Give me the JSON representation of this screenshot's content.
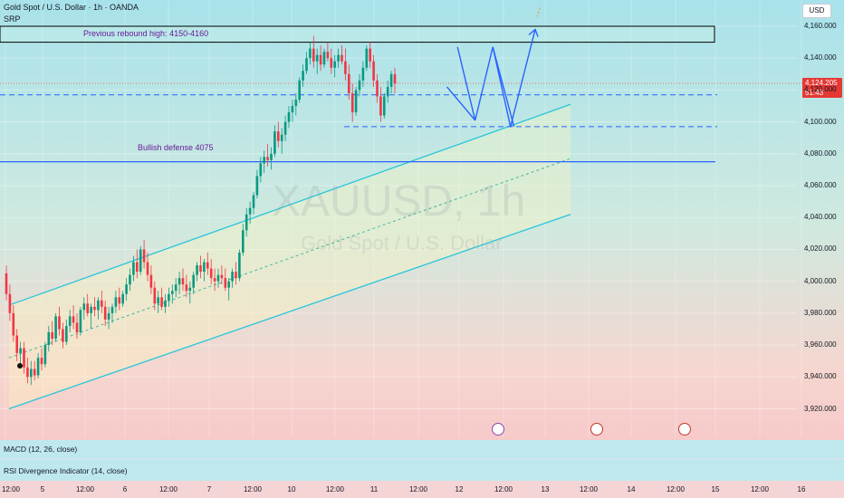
{
  "header": {
    "title": "Gold Spot / U.S. Dollar · 1h · OANDA",
    "indicator": "SRP"
  },
  "currency_button": "USD",
  "price_badge": {
    "price": "4,124.205",
    "countdown": "51:43",
    "color": "#e53935"
  },
  "watermark": {
    "symbol": "XAUUSD, 1h",
    "name": "Gold Spot / U.S. Dollar"
  },
  "annotations": {
    "rebound": "Previous rebound high: 4150-4160",
    "defense": "Bullish defense 4075"
  },
  "panels": {
    "macd": "MACD (12, 26, close)",
    "rsi": "RSI Divergence Indicator (14, close)"
  },
  "colors": {
    "up": "#089981",
    "down": "#f23645",
    "channel": "#26c6da",
    "level_line": "#2962ff",
    "annotation_text": "#6a1b9a",
    "forecast_arrow": "#2962ff"
  },
  "chart_data": {
    "type": "candlestick",
    "symbol": "XAUUSD",
    "timeframe": "1h",
    "ylim": [
      3910,
      4170
    ],
    "y_ticks": [
      "4,160.000",
      "4,140.000",
      "4,120.000",
      "4,100.000",
      "4,080.000",
      "4,060.000",
      "4,040.000",
      "4,020.000",
      "4,000.000",
      "3,980.000",
      "3,960.000",
      "3,940.000",
      "3,920.000"
    ],
    "x_ticks": [
      "12:00",
      "5",
      "12:00",
      "6",
      "12:00",
      "7",
      "12:00",
      "10",
      "12:00",
      "11",
      "12:00",
      "12",
      "12:00",
      "13",
      "12:00",
      "14",
      "12:00",
      "15",
      "12:00",
      "16",
      "12:00"
    ],
    "horizontal_levels": [
      {
        "value": 4075,
        "style": "solid"
      },
      {
        "value": 4117,
        "style": "dashed"
      },
      {
        "value": 4097,
        "style": "dashed"
      },
      {
        "value": 4124.205,
        "style": "dotted-red"
      }
    ],
    "zone": {
      "from": 4150,
      "to": 4160
    },
    "channel": {
      "upper": [
        [
          1,
          3985
        ],
        [
          160,
          4111
        ]
      ],
      "lower": [
        [
          1,
          3920
        ],
        [
          160,
          4042
        ]
      ],
      "mid": [
        [
          1,
          3952
        ],
        [
          160,
          4077
        ]
      ]
    },
    "forecast_path": [
      [
        128,
        4147
      ],
      [
        133,
        4101
      ],
      [
        138,
        4147
      ],
      [
        143,
        4097
      ],
      [
        150,
        4158
      ]
    ],
    "candles": [
      [
        4005,
        4010,
        3988,
        3992
      ],
      [
        3992,
        3998,
        3975,
        3980
      ],
      [
        3980,
        3985,
        3962,
        3966
      ],
      [
        3966,
        3970,
        3950,
        3955
      ],
      [
        3955,
        3962,
        3948,
        3958
      ],
      [
        3958,
        3962,
        3942,
        3946
      ],
      [
        3946,
        3952,
        3936,
        3940
      ],
      [
        3940,
        3950,
        3935,
        3945
      ],
      [
        3945,
        3950,
        3938,
        3941
      ],
      [
        3941,
        3955,
        3939,
        3952
      ],
      [
        3952,
        3958,
        3944,
        3948
      ],
      [
        3948,
        3962,
        3946,
        3960
      ],
      [
        3960,
        3972,
        3956,
        3968
      ],
      [
        3968,
        3975,
        3960,
        3964
      ],
      [
        3964,
        3980,
        3962,
        3978
      ],
      [
        3978,
        3984,
        3966,
        3970
      ],
      [
        3970,
        3974,
        3958,
        3962
      ],
      [
        3962,
        3976,
        3960,
        3972
      ],
      [
        3972,
        3982,
        3968,
        3978
      ],
      [
        3978,
        3985,
        3970,
        3974
      ],
      [
        3974,
        3980,
        3964,
        3968
      ],
      [
        3968,
        3984,
        3966,
        3982
      ],
      [
        3982,
        3990,
        3976,
        3986
      ],
      [
        3986,
        3992,
        3978,
        3980
      ],
      [
        3980,
        3986,
        3970,
        3984
      ],
      [
        3984,
        3990,
        3978,
        3982
      ],
      [
        3982,
        3990,
        3976,
        3988
      ],
      [
        3988,
        3994,
        3980,
        3984
      ],
      [
        3984,
        3988,
        3972,
        3976
      ],
      [
        3976,
        3984,
        3970,
        3980
      ],
      [
        3980,
        3986,
        3974,
        3984
      ],
      [
        3984,
        3994,
        3980,
        3990
      ],
      [
        3990,
        3996,
        3982,
        3986
      ],
      [
        3986,
        3994,
        3984,
        3992
      ],
      [
        3992,
        4002,
        3988,
        3998
      ],
      [
        3998,
        4008,
        3994,
        4004
      ],
      [
        4004,
        4016,
        4000,
        4012
      ],
      [
        4012,
        4020,
        4002,
        4006
      ],
      [
        4006,
        4022,
        4004,
        4020
      ],
      [
        4020,
        4026,
        4008,
        4012
      ],
      [
        4012,
        4018,
        4000,
        4004
      ],
      [
        4004,
        4010,
        3992,
        3996
      ],
      [
        3996,
        4000,
        3982,
        3986
      ],
      [
        3986,
        3994,
        3980,
        3990
      ],
      [
        3990,
        3996,
        3982,
        3984
      ],
      [
        3984,
        3992,
        3980,
        3988
      ],
      [
        3988,
        3996,
        3984,
        3992
      ],
      [
        3992,
        3998,
        3986,
        3994
      ],
      [
        3994,
        4002,
        3990,
        3998
      ],
      [
        3998,
        4006,
        3992,
        4002
      ],
      [
        4002,
        4008,
        3994,
        3998
      ],
      [
        3998,
        4004,
        3990,
        3994
      ],
      [
        3994,
        4000,
        3986,
        3996
      ],
      [
        3996,
        4006,
        3992,
        4004
      ],
      [
        4004,
        4012,
        4000,
        4010
      ],
      [
        4010,
        4016,
        4002,
        4006
      ],
      [
        4006,
        4014,
        4000,
        4012
      ],
      [
        4012,
        4018,
        4004,
        4008
      ],
      [
        4008,
        4014,
        3998,
        4002
      ],
      [
        4002,
        4008,
        3994,
        4000
      ],
      [
        4000,
        4008,
        3996,
        4004
      ],
      [
        4004,
        4010,
        3998,
        4002
      ],
      [
        4002,
        4008,
        3994,
        3996
      ],
      [
        3996,
        4002,
        3988,
        4000
      ],
      [
        4000,
        4008,
        3996,
        4006
      ],
      [
        4006,
        4012,
        3998,
        4002
      ],
      [
        4002,
        4020,
        4000,
        4018
      ],
      [
        4018,
        4036,
        4016,
        4032
      ],
      [
        4032,
        4046,
        4028,
        4042
      ],
      [
        4042,
        4050,
        4036,
        4046
      ],
      [
        4046,
        4056,
        4042,
        4054
      ],
      [
        4054,
        4070,
        4052,
        4066
      ],
      [
        4066,
        4078,
        4062,
        4074
      ],
      [
        4074,
        4082,
        4068,
        4078
      ],
      [
        4078,
        4086,
        4072,
        4076
      ],
      [
        4076,
        4084,
        4070,
        4080
      ],
      [
        4080,
        4098,
        4078,
        4094
      ],
      [
        4094,
        4100,
        4084,
        4088
      ],
      [
        4088,
        4096,
        4080,
        4092
      ],
      [
        4092,
        4104,
        4088,
        4100
      ],
      [
        4100,
        4110,
        4096,
        4106
      ],
      [
        4106,
        4114,
        4100,
        4110
      ],
      [
        4110,
        4118,
        4104,
        4114
      ],
      [
        4114,
        4128,
        4112,
        4126
      ],
      [
        4126,
        4136,
        4122,
        4132
      ],
      [
        4132,
        4144,
        4130,
        4140
      ],
      [
        4140,
        4150,
        4136,
        4146
      ],
      [
        4146,
        4154,
        4134,
        4138
      ],
      [
        4138,
        4146,
        4130,
        4142
      ],
      [
        4142,
        4148,
        4132,
        4136
      ],
      [
        4136,
        4146,
        4134,
        4144
      ],
      [
        4144,
        4150,
        4138,
        4140
      ],
      [
        4140,
        4146,
        4130,
        4134
      ],
      [
        4134,
        4142,
        4128,
        4138
      ],
      [
        4138,
        4146,
        4134,
        4142
      ],
      [
        4142,
        4148,
        4136,
        4138
      ],
      [
        4138,
        4146,
        4126,
        4130
      ],
      [
        4130,
        4136,
        4114,
        4118
      ],
      [
        4118,
        4124,
        4100,
        4106
      ],
      [
        4106,
        4122,
        4104,
        4120
      ],
      [
        4120,
        4130,
        4116,
        4126
      ],
      [
        4126,
        4138,
        4122,
        4134
      ],
      [
        4134,
        4148,
        4132,
        4146
      ],
      [
        4146,
        4150,
        4134,
        4138
      ],
      [
        4138,
        4142,
        4122,
        4126
      ],
      [
        4126,
        4130,
        4112,
        4116
      ],
      [
        4116,
        4122,
        4100,
        4104
      ],
      [
        4104,
        4118,
        4102,
        4116
      ],
      [
        4116,
        4126,
        4112,
        4122
      ],
      [
        4122,
        4132,
        4118,
        4130
      ],
      [
        4130,
        4134,
        4118,
        4124
      ]
    ]
  }
}
